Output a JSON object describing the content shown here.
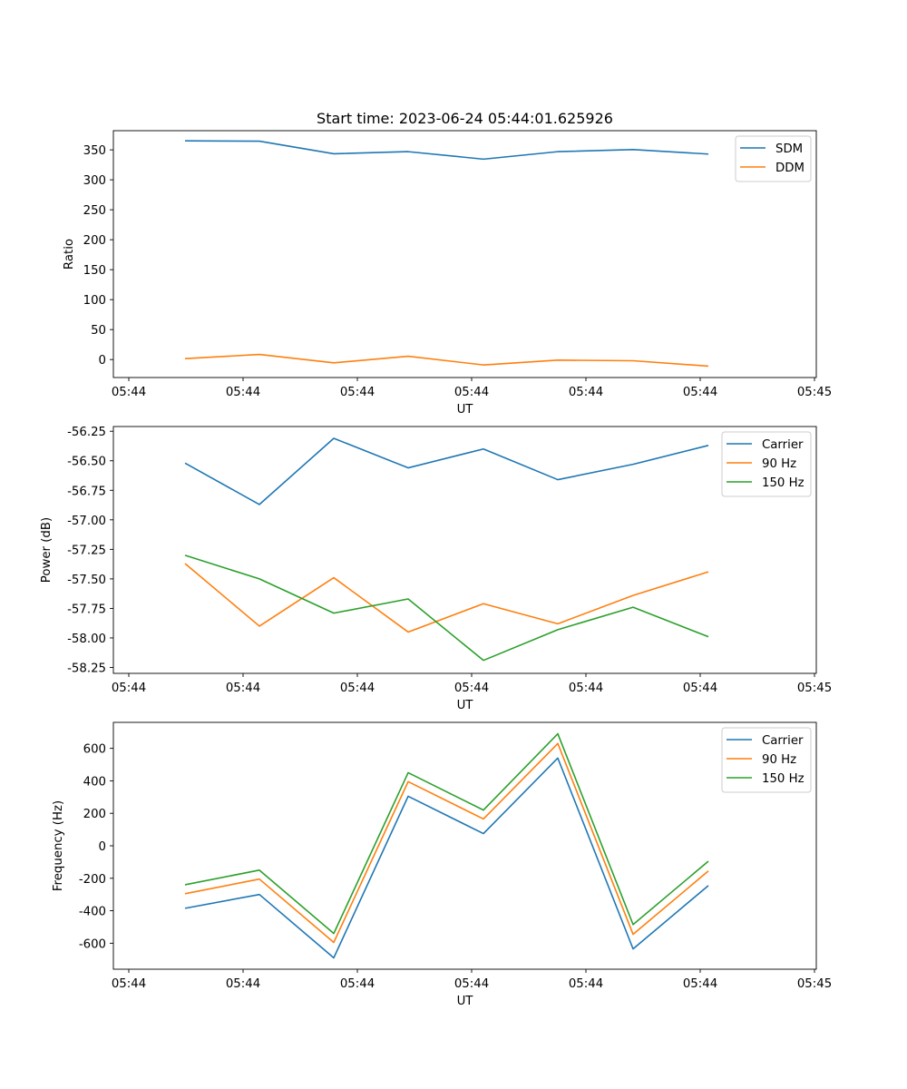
{
  "chart_data": [
    {
      "type": "line",
      "title": "Start time: 2023-06-24 05:44:01.625926",
      "xlabel": "UT",
      "ylabel": "Ratio",
      "x_ticks": [
        "05:44",
        "05:44",
        "05:44",
        "05:44",
        "05:44",
        "05:44",
        "05:45"
      ],
      "y_ticks": [
        "0",
        "50",
        "100",
        "150",
        "200",
        "250",
        "300",
        "350"
      ],
      "ylim": [
        -30,
        382
      ],
      "legend": "top-right",
      "x": [
        1,
        2,
        3,
        4,
        5,
        6,
        7,
        8
      ],
      "series": [
        {
          "name": "SDM",
          "color": "#1f77b4",
          "values": [
            365,
            364.5,
            343.5,
            347,
            334.5,
            347,
            350.5,
            343
          ]
        },
        {
          "name": "DDM",
          "color": "#ff7f0e",
          "values": [
            1.5,
            8.5,
            -5.5,
            5.5,
            -9,
            -1,
            -2,
            -11
          ]
        }
      ]
    },
    {
      "type": "line",
      "xlabel": "UT",
      "ylabel": "Power (dB)",
      "x_ticks": [
        "05:44",
        "05:44",
        "05:44",
        "05:44",
        "05:44",
        "05:44",
        "05:45"
      ],
      "y_ticks": [
        "-58.25",
        "-58.00",
        "-57.75",
        "-57.50",
        "-57.25",
        "-57.00",
        "-56.75",
        "-56.50",
        "-56.25"
      ],
      "ylim": [
        -58.3,
        -56.21
      ],
      "legend": "top-right",
      "x": [
        1,
        2,
        3,
        4,
        5,
        6,
        7,
        8
      ],
      "series": [
        {
          "name": "Carrier",
          "color": "#1f77b4",
          "values": [
            -56.52,
            -56.87,
            -56.31,
            -56.56,
            -56.4,
            -56.66,
            -56.53,
            -56.37
          ]
        },
        {
          "name": "90 Hz",
          "color": "#ff7f0e",
          "values": [
            -57.37,
            -57.9,
            -57.49,
            -57.95,
            -57.71,
            -57.88,
            -57.64,
            -57.44
          ]
        },
        {
          "name": "150 Hz",
          "color": "#2ca02c",
          "values": [
            -57.3,
            -57.5,
            -57.79,
            -57.67,
            -58.19,
            -57.93,
            -57.74,
            -57.99
          ]
        }
      ]
    },
    {
      "type": "line",
      "xlabel": "UT",
      "ylabel": "Frequency (Hz)",
      "x_ticks": [
        "05:44",
        "05:44",
        "05:44",
        "05:44",
        "05:44",
        "05:44",
        "05:45"
      ],
      "y_ticks": [
        "-600",
        "-400",
        "-200",
        "0",
        "200",
        "400",
        "600"
      ],
      "ylim": [
        -760,
        760
      ],
      "legend": "top-right",
      "x": [
        1,
        2,
        3,
        4,
        5,
        6,
        7,
        8
      ],
      "series": [
        {
          "name": "Carrier",
          "color": "#1f77b4",
          "values": [
            -385,
            -300,
            -690,
            305,
            75,
            540,
            -635,
            -245
          ]
        },
        {
          "name": "90 Hz",
          "color": "#ff7f0e",
          "values": [
            -295,
            -205,
            -595,
            395,
            165,
            630,
            -545,
            -155
          ]
        },
        {
          "name": "150 Hz",
          "color": "#2ca02c",
          "values": [
            -240,
            -150,
            -540,
            450,
            220,
            690,
            -485,
            -95
          ]
        }
      ]
    }
  ]
}
